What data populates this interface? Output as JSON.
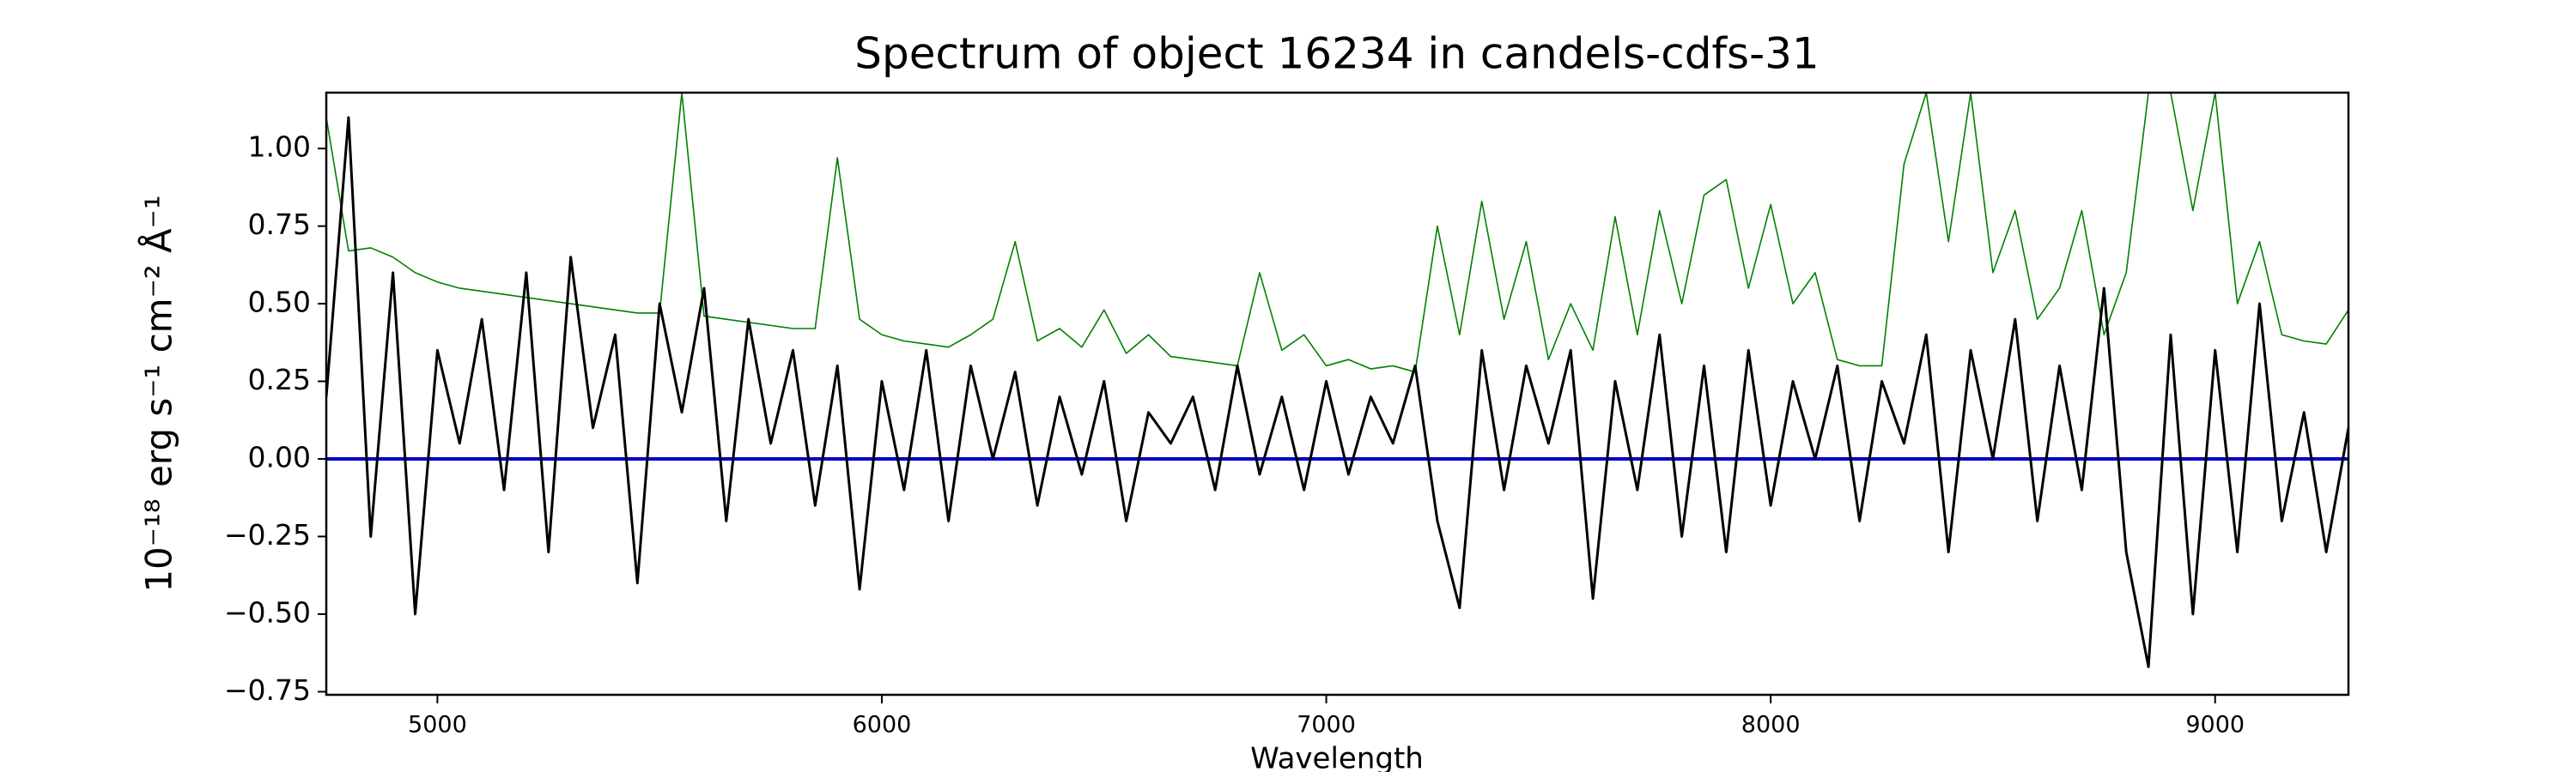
{
  "chart_data": {
    "type": "line",
    "title": "Spectrum of object 16234 in candels-cdfs-31",
    "xlabel": "Wavelength",
    "ylabel": "10⁻¹⁸ erg s⁻¹ cm⁻² Å⁻¹",
    "x": [
      4750,
      4800,
      4850,
      4900,
      4950,
      5000,
      5050,
      5100,
      5150,
      5200,
      5250,
      5300,
      5350,
      5400,
      5450,
      5500,
      5550,
      5600,
      5650,
      5700,
      5750,
      5800,
      5850,
      5900,
      5950,
      6000,
      6050,
      6100,
      6150,
      6200,
      6250,
      6300,
      6350,
      6400,
      6450,
      6500,
      6550,
      6600,
      6650,
      6700,
      6750,
      6800,
      6850,
      6900,
      6950,
      7000,
      7050,
      7100,
      7150,
      7200,
      7250,
      7300,
      7350,
      7400,
      7450,
      7500,
      7550,
      7600,
      7650,
      7700,
      7750,
      7800,
      7850,
      7900,
      7950,
      8000,
      8050,
      8100,
      8150,
      8200,
      8250,
      8300,
      8350,
      8400,
      8450,
      8500,
      8550,
      8600,
      8650,
      8700,
      8750,
      8800,
      8850,
      8900,
      8950,
      9000,
      9050,
      9100,
      9150,
      9200,
      9250,
      9300
    ],
    "series": [
      {
        "color": "#008000",
        "values": [
          1.1,
          0.67,
          0.68,
          0.65,
          0.6,
          0.57,
          0.55,
          0.54,
          0.53,
          0.52,
          0.51,
          0.5,
          0.49,
          0.48,
          0.47,
          0.47,
          1.18,
          0.46,
          0.45,
          0.44,
          0.43,
          0.42,
          0.42,
          0.97,
          0.45,
          0.4,
          0.38,
          0.37,
          0.36,
          0.4,
          0.45,
          0.7,
          0.38,
          0.42,
          0.36,
          0.48,
          0.34,
          0.4,
          0.33,
          0.32,
          0.31,
          0.3,
          0.6,
          0.35,
          0.4,
          0.3,
          0.32,
          0.29,
          0.3,
          0.28,
          0.75,
          0.4,
          0.83,
          0.45,
          0.7,
          0.32,
          0.5,
          0.35,
          0.78,
          0.4,
          0.8,
          0.5,
          0.85,
          0.9,
          0.55,
          0.82,
          0.5,
          0.6,
          0.32,
          0.3,
          0.3,
          0.95,
          1.18,
          0.7,
          1.18,
          0.6,
          0.8,
          0.45,
          0.55,
          0.8,
          0.4,
          0.6,
          1.18,
          1.18,
          0.8,
          1.18,
          0.5,
          0.7,
          0.4,
          0.38,
          0.37,
          0.48
        ]
      },
      {
        "color": "#0000cc",
        "values": [
          0,
          0,
          0,
          0,
          0,
          0,
          0,
          0,
          0,
          0,
          0,
          0,
          0,
          0,
          0,
          0,
          0,
          0,
          0,
          0,
          0,
          0,
          0,
          0,
          0,
          0,
          0,
          0,
          0,
          0,
          0,
          0,
          0,
          0,
          0,
          0,
          0,
          0,
          0,
          0,
          0,
          0,
          0,
          0,
          0,
          0,
          0,
          0,
          0,
          0,
          0,
          0,
          0,
          0,
          0,
          0,
          0,
          0,
          0,
          0,
          0,
          0,
          0,
          0,
          0,
          0,
          0,
          0,
          0,
          0,
          0,
          0,
          0,
          0,
          0,
          0,
          0,
          0,
          0,
          0,
          0,
          0,
          0,
          0,
          0,
          0,
          0,
          0,
          0,
          0,
          0,
          0
        ]
      },
      {
        "color": "#000000",
        "values": [
          0.2,
          1.1,
          -0.25,
          0.6,
          -0.5,
          0.35,
          0.05,
          0.45,
          -0.1,
          0.6,
          -0.3,
          0.65,
          0.1,
          0.4,
          -0.4,
          0.5,
          0.15,
          0.55,
          -0.2,
          0.45,
          0.05,
          0.35,
          -0.15,
          0.3,
          -0.42,
          0.25,
          -0.1,
          0.35,
          -0.2,
          0.3,
          0.0,
          0.28,
          -0.15,
          0.2,
          -0.05,
          0.25,
          -0.2,
          0.15,
          0.05,
          0.2,
          -0.1,
          0.3,
          -0.05,
          0.2,
          -0.1,
          0.25,
          -0.05,
          0.2,
          0.05,
          0.3,
          -0.2,
          -0.48,
          0.35,
          -0.1,
          0.3,
          0.05,
          0.35,
          -0.45,
          0.25,
          -0.1,
          0.4,
          -0.25,
          0.3,
          -0.3,
          0.35,
          -0.15,
          0.25,
          0.0,
          0.3,
          -0.2,
          0.25,
          0.05,
          0.4,
          -0.3,
          0.35,
          0.0,
          0.45,
          -0.2,
          0.3,
          -0.1,
          0.55,
          -0.3,
          -0.67,
          0.4,
          -0.5,
          0.35,
          -0.3,
          0.5,
          -0.2,
          0.15,
          -0.3,
          0.1
        ]
      }
    ],
    "xlim": [
      4750,
      9300
    ],
    "xticks": [
      5000,
      6000,
      7000,
      8000,
      9000
    ],
    "ylim": [
      -0.76,
      1.18
    ],
    "yticks": [
      {
        "value": -0.75,
        "label": "−0.75"
      },
      {
        "value": -0.5,
        "label": "−0.50"
      },
      {
        "value": -0.25,
        "label": "−0.25"
      },
      {
        "value": 0,
        "label": "0.00"
      },
      {
        "value": 0.25,
        "label": "0.25"
      },
      {
        "value": 0.5,
        "label": "0.50"
      },
      {
        "value": 0.75,
        "label": "0.75"
      },
      {
        "value": 1,
        "label": "1.00"
      }
    ],
    "grid": false
  }
}
